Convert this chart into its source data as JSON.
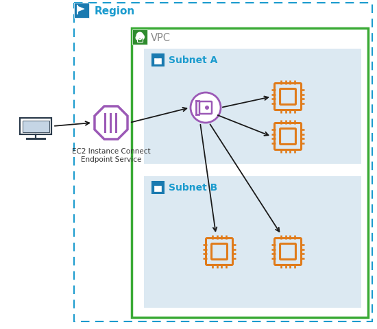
{
  "bg_color": "#ffffff",
  "region_border_color": "#1a9bce",
  "region_label": "Region",
  "region_label_color": "#1a9bce",
  "region_icon_bg": "#1a7ab0",
  "vpc_border_color": "#3aaa35",
  "vpc_icon_bg": "#2e8b2e",
  "vpc_label": "VPC",
  "vpc_label_color": "#888888",
  "subnet_bg": "#dce9f2",
  "subnet_label_color": "#1a9bce",
  "subnet_icon_bg": "#1a7ab0",
  "subnet_a_label": "Subnet A",
  "subnet_b_label": "Subnet B",
  "ec2_endpoint_label": "EC2 Instance Connect\nEndpoint Service",
  "arrow_color": "#1a1a1a",
  "chip_color": "#e07b1a",
  "endpoint_circle_color": "#9b59b6",
  "service_octagon_color": "#9b59b6",
  "computer_color": "#2a3a4a",
  "label_fontsize": 9,
  "title_fontsize": 10
}
